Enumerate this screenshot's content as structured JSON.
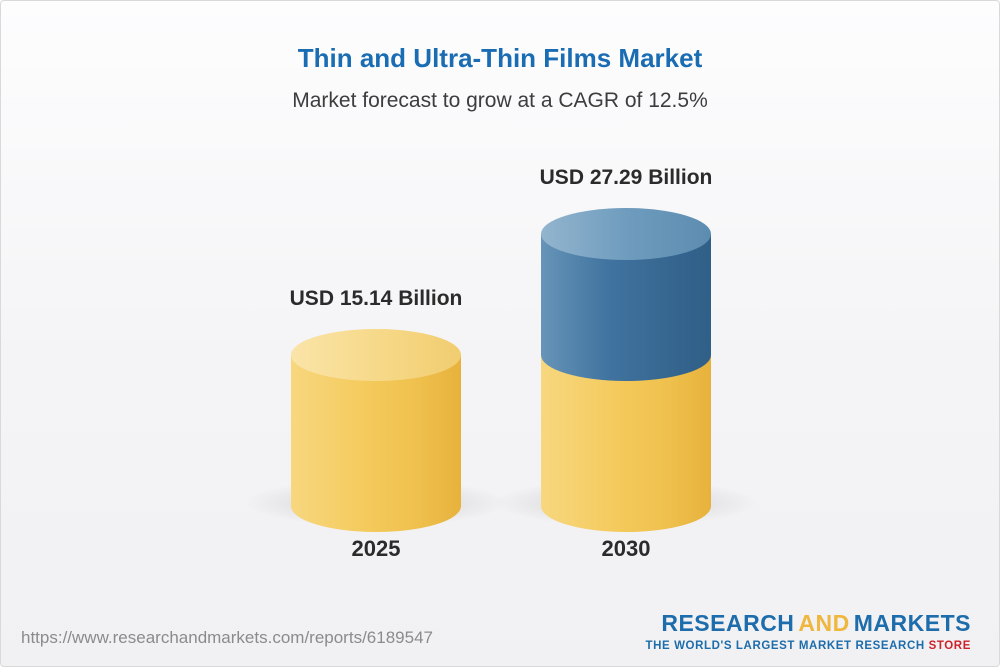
{
  "chart_data": {
    "type": "bar",
    "style": "3d-stacked-cylinder",
    "title": "Thin and Ultra-Thin Films Market",
    "subtitle": "Market forecast to grow at a CAGR of 12.5%",
    "unit": "USD Billion",
    "categories": [
      "2025",
      "2030"
    ],
    "values": [
      15.14,
      27.29
    ],
    "bars": [
      {
        "category": "2025",
        "value": 15.14,
        "label": "USD 15.14 Billion",
        "segments": [
          "gold"
        ]
      },
      {
        "category": "2030",
        "value": 27.29,
        "label": "USD 27.29 Billion",
        "segments": [
          "gold",
          "blue"
        ]
      }
    ],
    "colors": {
      "gold": "#f2c65a",
      "gold_lid": "#f6d887",
      "blue": "#3c70a0",
      "blue_lid": "#74a0c1",
      "title_blue": "#1b6db3"
    },
    "legend_position": "none",
    "grid": false
  },
  "footer": {
    "url": "https://www.researchandmarkets.com/reports/6189547",
    "logo": {
      "research": "RESEARCH",
      "and": "AND",
      "markets": "MARKETS",
      "tagline_main": "THE WORLD'S LARGEST MARKET RESEARCH ",
      "tagline_store": "STORE"
    }
  }
}
